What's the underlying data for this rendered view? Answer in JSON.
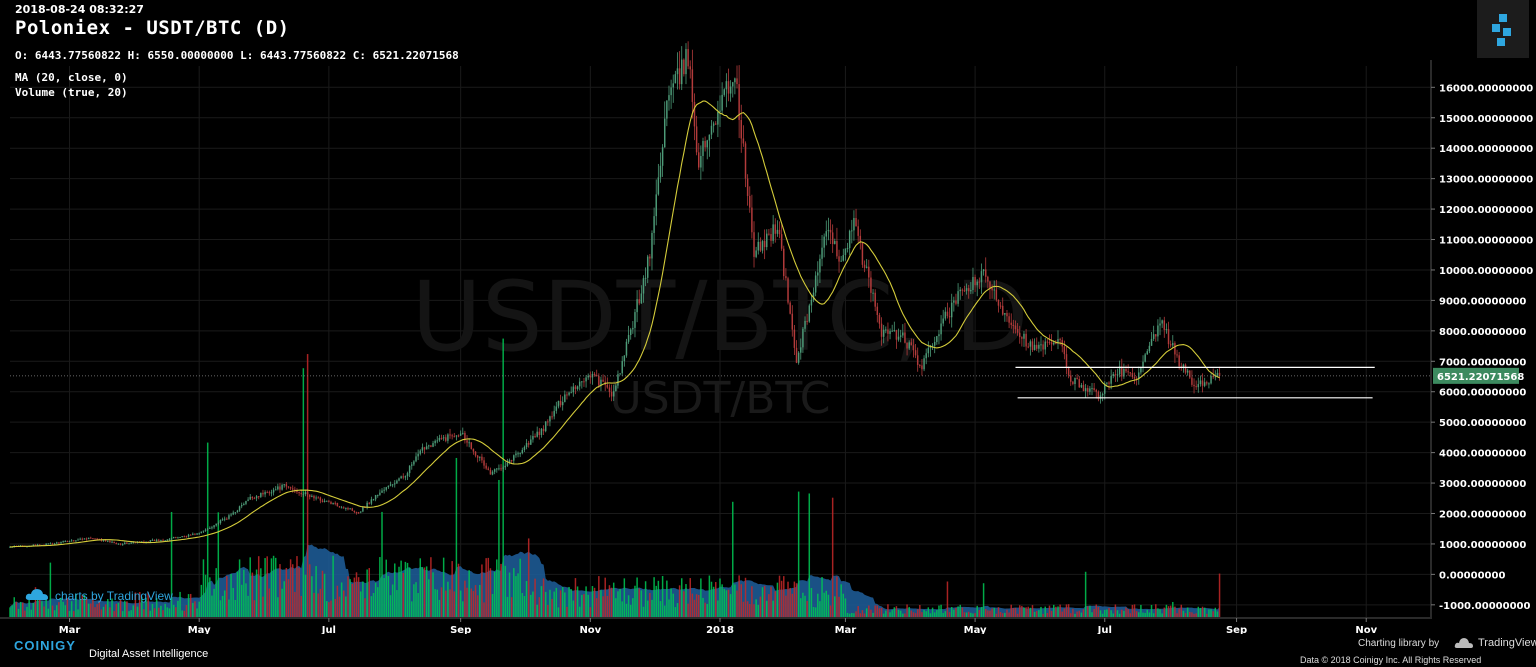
{
  "header": {
    "timestamp": "2018-08-24 08:32:27",
    "title": "Poloniex - USDT/BTC (D)",
    "ohlc": "O: 6443.77560822 H: 6550.00000000 L: 6443.77560822 C: 6521.22071568",
    "indicators": [
      "MA (20, close, 0)",
      "Volume (true, 20)"
    ]
  },
  "watermark": {
    "big": "USDT/BTC, D",
    "small": "USDT/BTC"
  },
  "branding": {
    "charts_by": "charts by TradingView",
    "coinigy_logo": "COINIGY",
    "coinigy_tagline": "Digital Asset Intelligence",
    "charting_library": "Charting library by",
    "tradingview": "TradingView",
    "copyright": "Data © 2018  Coinigy Inc. All Rights Reserved"
  },
  "colors": {
    "up": "#4d9b78",
    "down": "#b33b3b",
    "ma": "#d4cc3a",
    "vol_up": "#00c853",
    "vol_down": "#c62828",
    "vol_area": "#1f5f9c",
    "grid": "#1a1a1a",
    "price_label_bg": "#3c8a5f",
    "accent": "#2ea6df"
  },
  "chart_data": {
    "type": "candlestick",
    "title": "Poloniex - USDT/BTC (D)",
    "x_tick_labels": [
      "Mar",
      "May",
      "Jul",
      "Sep",
      "Nov",
      "2018",
      "Mar",
      "May",
      "Jul",
      "Sep",
      "Nov"
    ],
    "y_tick_labels": [
      "16000.00000000",
      "15000.00000000",
      "14000.00000000",
      "13000.00000000",
      "12000.00000000",
      "11000.00000000",
      "10000.00000000",
      "9000.00000000",
      "8000.00000000",
      "7000.00000000",
      "6000.00000000",
      "5000.00000000",
      "4000.00000000",
      "3000.00000000",
      "2000.00000000",
      "1000.00000000",
      "0.00000000",
      "-1000.00000000"
    ],
    "ylim": [
      -1400,
      16700
    ],
    "x_range": [
      "2017-02-01",
      "2018-12-01"
    ],
    "last_price": "6521.22071568",
    "grid": true,
    "price_path": [
      [
        "2017-02-01",
        900
      ],
      [
        "2017-02-20",
        1000
      ],
      [
        "2017-03-10",
        1200
      ],
      [
        "2017-03-25",
        1000
      ],
      [
        "2017-04-15",
        1150
      ],
      [
        "2017-05-01",
        1350
      ],
      [
        "2017-05-15",
        1900
      ],
      [
        "2017-05-25",
        2500
      ],
      [
        "2017-06-10",
        2900
      ],
      [
        "2017-06-25",
        2500
      ],
      [
        "2017-07-15",
        2050
      ],
      [
        "2017-07-25",
        2700
      ],
      [
        "2017-08-05",
        3200
      ],
      [
        "2017-08-15",
        4200
      ],
      [
        "2017-09-01",
        4700
      ],
      [
        "2017-09-15",
        3300
      ],
      [
        "2017-09-25",
        3800
      ],
      [
        "2017-10-10",
        4800
      ],
      [
        "2017-10-20",
        5900
      ],
      [
        "2017-11-01",
        6600
      ],
      [
        "2017-11-12",
        5900
      ],
      [
        "2017-11-20",
        8000
      ],
      [
        "2017-11-29",
        10500
      ],
      [
        "2017-12-07",
        15500
      ],
      [
        "2017-12-17",
        17000
      ],
      [
        "2017-12-22",
        13500
      ],
      [
        "2017-12-28",
        14800
      ],
      [
        "2018-01-08",
        16500
      ],
      [
        "2018-01-17",
        10500
      ],
      [
        "2018-01-28",
        11500
      ],
      [
        "2018-02-06",
        7000
      ],
      [
        "2018-02-20",
        11200
      ],
      [
        "2018-02-27",
        10400
      ],
      [
        "2018-03-05",
        11500
      ],
      [
        "2018-03-18",
        8000
      ],
      [
        "2018-03-28",
        7800
      ],
      [
        "2018-04-06",
        6800
      ],
      [
        "2018-04-15",
        8200
      ],
      [
        "2018-04-25",
        9300
      ],
      [
        "2018-05-05",
        9800
      ],
      [
        "2018-05-15",
        8600
      ],
      [
        "2018-05-28",
        7400
      ],
      [
        "2018-06-10",
        7600
      ],
      [
        "2018-06-15",
        6400
      ],
      [
        "2018-06-28",
        5900
      ],
      [
        "2018-07-08",
        6700
      ],
      [
        "2018-07-16",
        6400
      ],
      [
        "2018-07-22",
        7400
      ],
      [
        "2018-07-27",
        8300
      ],
      [
        "2018-08-05",
        7000
      ],
      [
        "2018-08-12",
        6200
      ],
      [
        "2018-08-24",
        6521
      ]
    ],
    "support_lines": [
      {
        "y": 6800,
        "x_start": "2018-05-20",
        "x_end": "2018-11-05"
      },
      {
        "y": 5800,
        "x_start": "2018-05-21",
        "x_end": "2018-11-04"
      }
    ]
  }
}
